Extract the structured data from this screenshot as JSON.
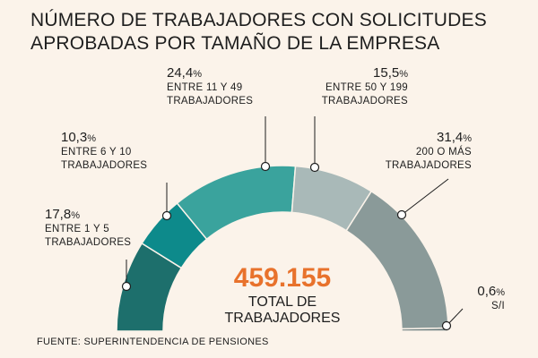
{
  "chart_data": {
    "type": "pie",
    "variant": "semicircle-donut",
    "title_lines": [
      "NÚMERO DE TRABAJADORES CON SOLICITUDES",
      "APROBADAS POR TAMAÑO DE LA EMPRESA"
    ],
    "slices": [
      {
        "pct": "17,8",
        "value": 17.8,
        "lines": [
          "ENTRE 1 Y 5",
          "TRABAJADORES"
        ],
        "color": "#1d6f6c"
      },
      {
        "pct": "10,3",
        "value": 10.3,
        "lines": [
          "ENTRE 6 Y 10",
          "TRABAJADORES"
        ],
        "color": "#0d8a8b"
      },
      {
        "pct": "24,4",
        "value": 24.4,
        "lines": [
          "ENTRE 11 Y 49",
          "TRABAJADORES"
        ],
        "color": "#3aa39d"
      },
      {
        "pct": "15,5",
        "value": 15.5,
        "lines": [
          "ENTRE 50 Y 199",
          "TRABAJADORES"
        ],
        "color": "#a9b9b8"
      },
      {
        "pct": "31,4",
        "value": 31.4,
        "lines": [
          "200 O MÁS",
          "TRABAJADORES"
        ],
        "color": "#8a9a99"
      },
      {
        "pct": "0,6",
        "value": 0.6,
        "lines": [
          "S/I"
        ],
        "color": "#6d7f80"
      }
    ],
    "percent_sign": "%",
    "total_value": "459.155",
    "total_lines": [
      "TOTAL DE",
      "TRABAJADORES"
    ],
    "source": "FUENTE: SUPERINTENDENCIA DE PENSIONES"
  }
}
